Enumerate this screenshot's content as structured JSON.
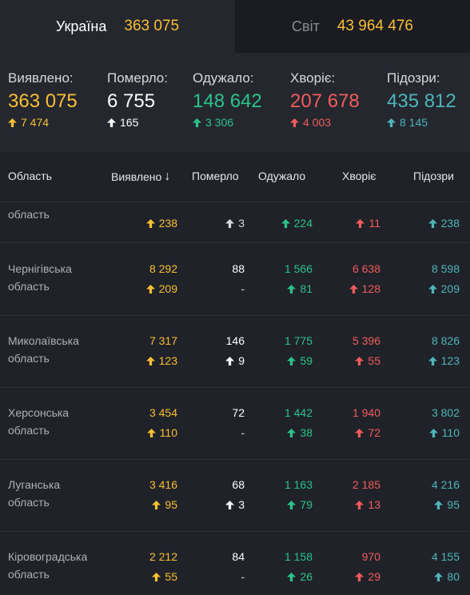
{
  "tabs": {
    "ukraine": {
      "label": "Україна",
      "value": "363 075"
    },
    "world": {
      "label": "Світ",
      "value": "43 964 476"
    }
  },
  "summary": [
    {
      "key": "detected",
      "label": "Виявлено:",
      "value": "363 075",
      "delta": "7 474",
      "color": "#fbbf33"
    },
    {
      "key": "died",
      "label": "Померло:",
      "value": "6 755",
      "delta": "165",
      "color": "#ffffff"
    },
    {
      "key": "recovered",
      "label": "Одужало:",
      "value": "148 642",
      "delta": "3 306",
      "color": "#2bc48a"
    },
    {
      "key": "sick",
      "label": "Хворіє:",
      "value": "207 678",
      "delta": "4 003",
      "color": "#f25c5c"
    },
    {
      "key": "suspected",
      "label": "Підозри:",
      "value": "435 812",
      "delta": "8 145",
      "color": "#4db6b9"
    }
  ],
  "table": {
    "headers": {
      "region": "Область",
      "detected": "Виявлено",
      "sort_icon": "↓",
      "died": "Померло",
      "recovered": "Одужало",
      "sick": "Хворіє",
      "suspected": "Підозри"
    },
    "rows": [
      {
        "region": "область",
        "detected": "",
        "detected_delta": "238",
        "died": "",
        "died_delta": "3",
        "recovered": "",
        "recovered_delta": "224",
        "sick": "",
        "sick_delta": "11",
        "suspected": "",
        "suspected_delta": "238"
      },
      {
        "region": "Чернігівська область",
        "detected": "8 292",
        "detected_delta": "209",
        "died": "88",
        "died_delta": "-",
        "recovered": "1 566",
        "recovered_delta": "81",
        "sick": "6 638",
        "sick_delta": "128",
        "suspected": "8 598",
        "suspected_delta": "209"
      },
      {
        "region": "Миколаївська область",
        "detected": "7 317",
        "detected_delta": "123",
        "died": "146",
        "died_delta": "9",
        "recovered": "1 775",
        "recovered_delta": "59",
        "sick": "5 396",
        "sick_delta": "55",
        "suspected": "8 826",
        "suspected_delta": "123"
      },
      {
        "region": "Херсонська область",
        "detected": "3 454",
        "detected_delta": "110",
        "died": "72",
        "died_delta": "-",
        "recovered": "1 442",
        "recovered_delta": "38",
        "sick": "1 940",
        "sick_delta": "72",
        "suspected": "3 802",
        "suspected_delta": "110"
      },
      {
        "region": "Луганська область",
        "detected": "3 416",
        "detected_delta": "95",
        "died": "68",
        "died_delta": "3",
        "recovered": "1 163",
        "recovered_delta": "79",
        "sick": "2 185",
        "sick_delta": "13",
        "suspected": "4 216",
        "suspected_delta": "95"
      },
      {
        "region": "Кіровоградська область",
        "detected": "2 212",
        "detected_delta": "55",
        "died": "84",
        "died_delta": "-",
        "recovered": "1 158",
        "recovered_delta": "26",
        "sick": "970",
        "sick_delta": "29",
        "suspected": "4 155",
        "suspected_delta": "80"
      }
    ]
  }
}
